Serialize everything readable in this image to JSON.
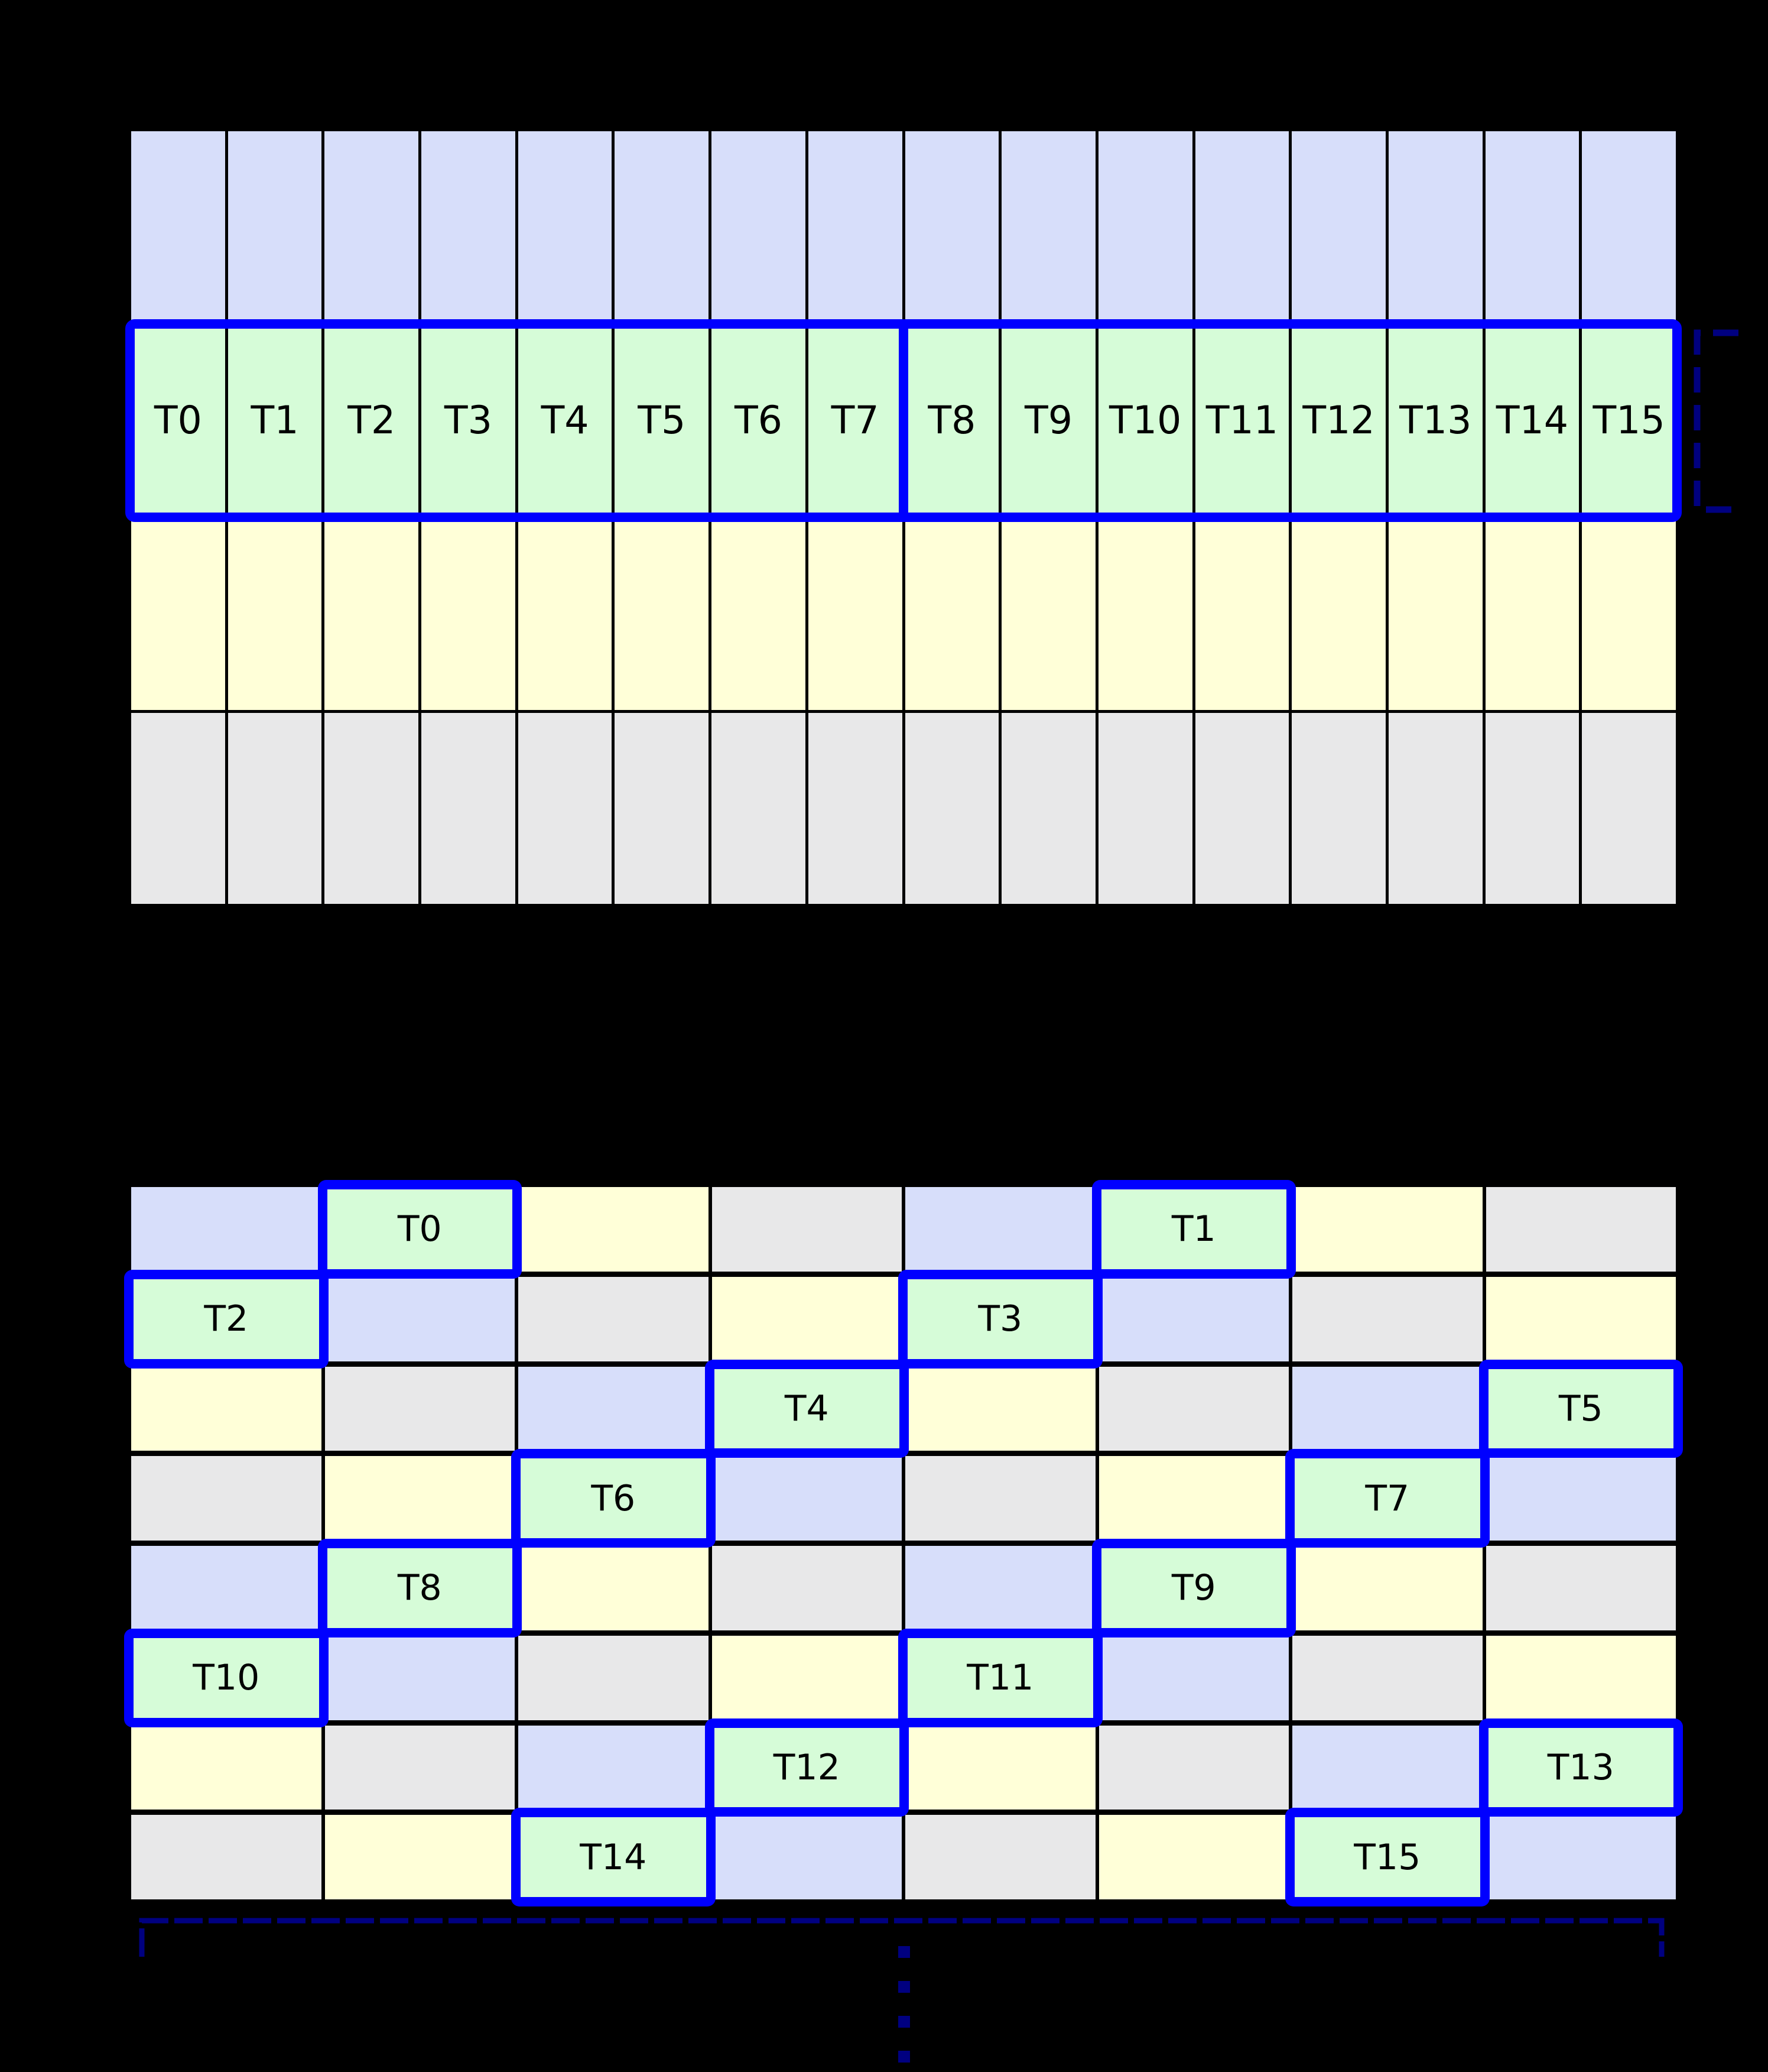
{
  "canvas": {
    "background": "#000000"
  },
  "palette": {
    "blue": "#d7defa",
    "green": "#d6fcd8",
    "yellow": "#ffffd8",
    "gray": "#e8e8e9",
    "highlight_blue": "#0000ff",
    "bracket_navy": "#000080",
    "gridline": "#000000",
    "label_text": "#000000"
  },
  "top_grid": {
    "columns": 16,
    "rows": 4,
    "row_fills": [
      "blue",
      "green",
      "yellow",
      "gray"
    ],
    "thread_row": {
      "index": 1,
      "labels": [
        "T0",
        "T1",
        "T2",
        "T3",
        "T4",
        "T5",
        "T6",
        "T7",
        "T8",
        "T9",
        "T10",
        "T11",
        "T12",
        "T13",
        "T14",
        "T15"
      ],
      "highlighted": true,
      "divider_after_label": "T7"
    }
  },
  "bottom_grid": {
    "columns": 8,
    "rows": 8,
    "cells": [
      [
        "blue",
        "green:T0",
        "yellow",
        "gray",
        "blue",
        "green:T1",
        "yellow",
        "gray"
      ],
      [
        "green:T2",
        "blue",
        "gray",
        "yellow",
        "green:T3",
        "blue",
        "gray",
        "yellow"
      ],
      [
        "yellow",
        "gray",
        "blue",
        "green:T4",
        "yellow",
        "gray",
        "blue",
        "green:T5"
      ],
      [
        "gray",
        "yellow",
        "green:T6",
        "blue",
        "gray",
        "yellow",
        "green:T7",
        "blue"
      ],
      [
        "blue",
        "green:T8",
        "yellow",
        "gray",
        "blue",
        "green:T9",
        "yellow",
        "gray"
      ],
      [
        "green:T10",
        "blue",
        "gray",
        "yellow",
        "green:T11",
        "blue",
        "gray",
        "yellow"
      ],
      [
        "yellow",
        "gray",
        "blue",
        "green:T12",
        "yellow",
        "gray",
        "blue",
        "green:T13"
      ],
      [
        "gray",
        "yellow",
        "green:T14",
        "blue",
        "gray",
        "yellow",
        "green:T15",
        "blue"
      ]
    ]
  },
  "annotations": {
    "row_height_bracket": {
      "style": "dashed",
      "position": "right-of-highlighted-row"
    },
    "grid_width_bracket": {
      "style": "dashed",
      "position": "below-bottom-grid"
    },
    "continuation_dots": {
      "style": "dotted",
      "count": 4,
      "position": "bottom-center"
    }
  }
}
